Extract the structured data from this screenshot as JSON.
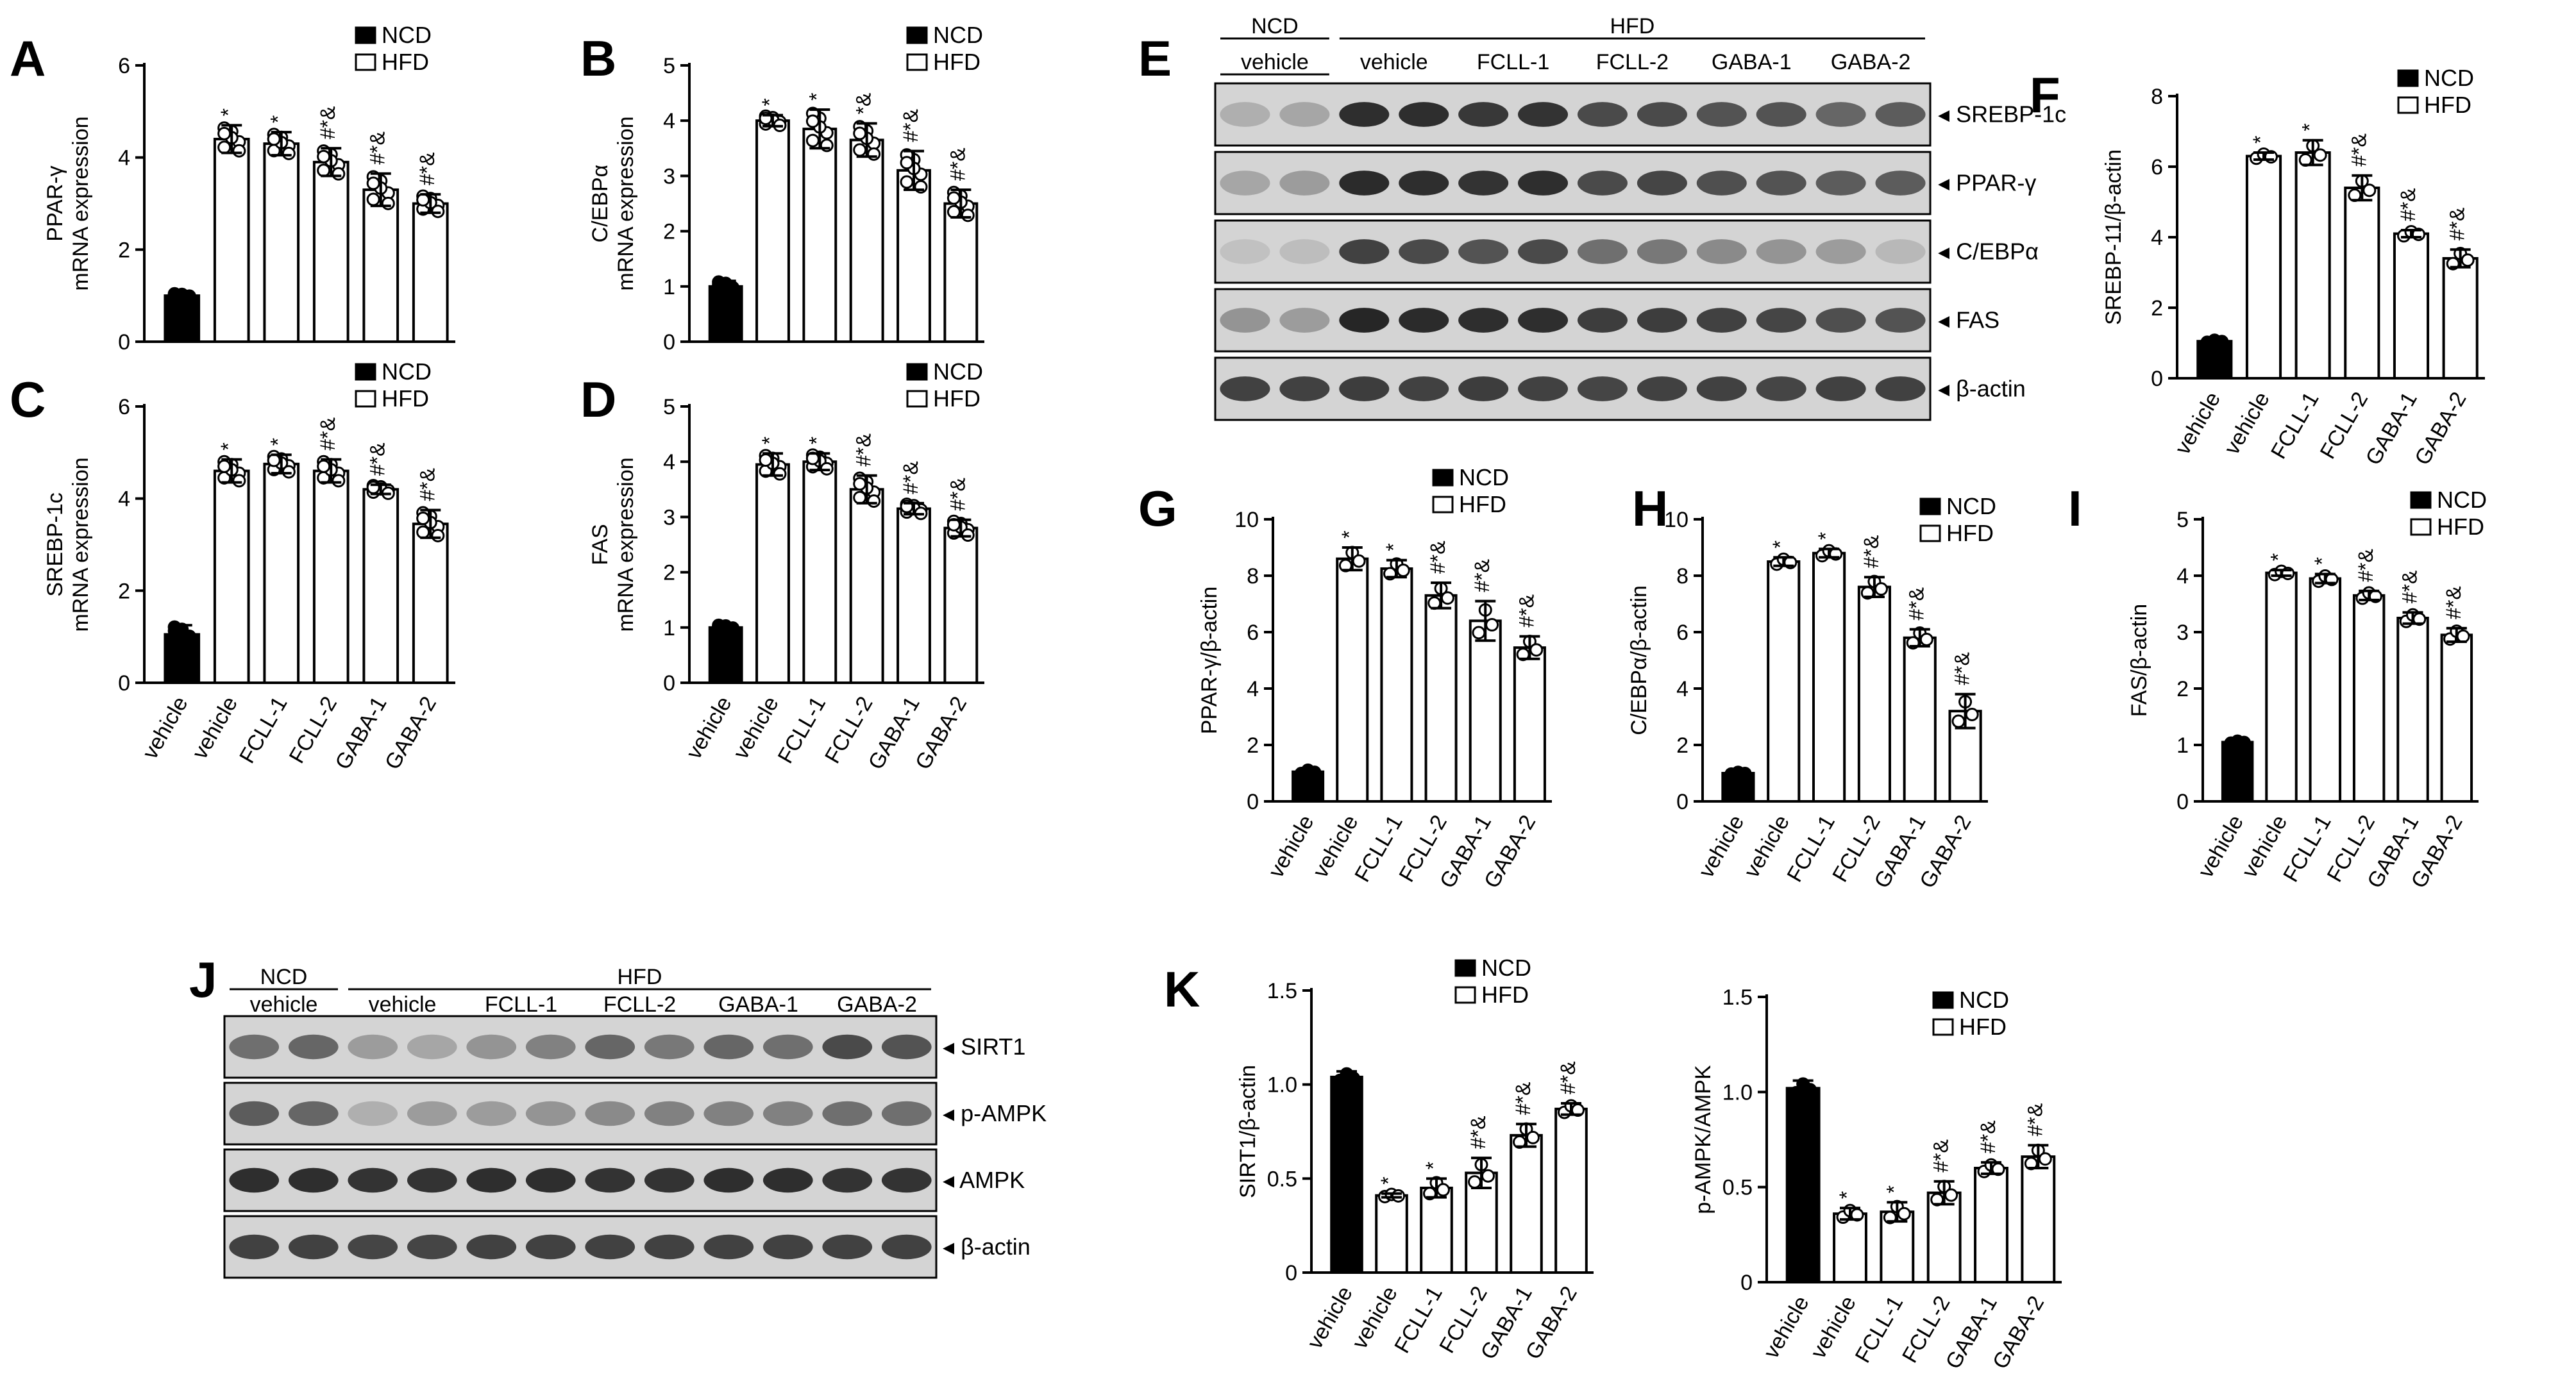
{
  "figure": {
    "legend_ncd": "NCD",
    "legend_hfd": "HFD",
    "colors": {
      "ncd_fill": "#000000",
      "hfd_fill": "#ffffff",
      "outline": "#000000",
      "blot_background": "#d4d4d4",
      "band": "#1c1c1c"
    },
    "group_categories": [
      "vehicle",
      "vehicle",
      "FCLL-1",
      "FCLL-2",
      "GABA-1",
      "GABA-2"
    ],
    "group_conditions": [
      "NCD",
      "HFD",
      "HFD",
      "HFD",
      "HFD",
      "HFD"
    ]
  },
  "chart_data": [
    {
      "panel": "A",
      "type": "bar",
      "ylabel": [
        "PPAR-γ",
        "mRNA expression"
      ],
      "ylim": [
        0,
        6
      ],
      "yticks": [
        0,
        2,
        4,
        6
      ],
      "categories": [
        "vehicle",
        "vehicle",
        "FCLL-1",
        "FCLL-2",
        "GABA-1",
        "GABA-2"
      ],
      "values": [
        1.0,
        4.4,
        4.3,
        3.9,
        3.3,
        3.0
      ],
      "errors": [
        0.05,
        0.3,
        0.25,
        0.3,
        0.35,
        0.2
      ],
      "significance": [
        "",
        "*",
        "*",
        "#*&",
        "#*&",
        "#*&"
      ],
      "show_xlabels": false
    },
    {
      "panel": "B",
      "type": "bar",
      "ylabel": [
        "C/EBPα",
        "mRNA expression"
      ],
      "ylim": [
        0,
        5
      ],
      "yticks": [
        0,
        1,
        2,
        3,
        4,
        5
      ],
      "categories": [
        "vehicle",
        "vehicle",
        "FCLL-1",
        "FCLL-2",
        "GABA-1",
        "GABA-2"
      ],
      "values": [
        1.0,
        4.0,
        3.85,
        3.65,
        3.1,
        2.5
      ],
      "errors": [
        0.1,
        0.1,
        0.35,
        0.3,
        0.35,
        0.25
      ],
      "significance": [
        "",
        "*",
        "*",
        "*&",
        "#*&",
        "#*&"
      ],
      "show_xlabels": false
    },
    {
      "panel": "C",
      "type": "bar",
      "ylabel": [
        "SREBP-1c",
        "mRNA expression"
      ],
      "ylim": [
        0,
        6
      ],
      "yticks": [
        0,
        2,
        4,
        6
      ],
      "categories": [
        "vehicle",
        "vehicle",
        "FCLL-1",
        "FCLL-2",
        "GABA-1",
        "GABA-2"
      ],
      "values": [
        1.05,
        4.6,
        4.75,
        4.6,
        4.2,
        3.45
      ],
      "errors": [
        0.2,
        0.25,
        0.2,
        0.25,
        0.1,
        0.3
      ],
      "significance": [
        "",
        "*",
        "*",
        "#*&",
        "#*&",
        "#*&"
      ],
      "show_xlabels": true
    },
    {
      "panel": "D",
      "type": "bar",
      "ylabel": [
        "FAS",
        "mRNA expression"
      ],
      "ylim": [
        0,
        5
      ],
      "yticks": [
        0,
        1,
        2,
        3,
        4,
        5
      ],
      "categories": [
        "vehicle",
        "vehicle",
        "FCLL-1",
        "FCLL-2",
        "GABA-1",
        "GABA-2"
      ],
      "values": [
        1.0,
        3.95,
        4.0,
        3.5,
        3.15,
        2.8
      ],
      "errors": [
        0.05,
        0.2,
        0.15,
        0.25,
        0.1,
        0.15
      ],
      "significance": [
        "",
        "*",
        "*",
        "#*&",
        "#*&",
        "#*&"
      ],
      "show_xlabels": true
    },
    {
      "panel": "F",
      "type": "bar",
      "ylabel": [
        "SREBP-11/β-actin"
      ],
      "ylim": [
        0,
        8
      ],
      "yticks": [
        0,
        2,
        4,
        6,
        8
      ],
      "categories": [
        "vehicle",
        "vehicle",
        "FCLL-1",
        "FCLL-2",
        "GABA-1",
        "GABA-2"
      ],
      "values": [
        1.05,
        6.3,
        6.4,
        5.4,
        4.1,
        3.4
      ],
      "errors": [
        0.05,
        0.1,
        0.35,
        0.35,
        0.1,
        0.25
      ],
      "significance": [
        "",
        "*",
        "*",
        "#*&",
        "#*&",
        "#*&"
      ],
      "show_xlabels": true
    },
    {
      "panel": "G",
      "type": "bar",
      "ylabel": [
        "PPAR-γ/β-actin"
      ],
      "ylim": [
        0,
        10
      ],
      "yticks": [
        0,
        2,
        4,
        6,
        8,
        10
      ],
      "categories": [
        "vehicle",
        "vehicle",
        "FCLL-1",
        "FCLL-2",
        "GABA-1",
        "GABA-2"
      ],
      "values": [
        1.05,
        8.6,
        8.25,
        7.3,
        6.4,
        5.45
      ],
      "errors": [
        0.1,
        0.4,
        0.3,
        0.45,
        0.7,
        0.4
      ],
      "significance": [
        "",
        "*",
        "*",
        "#*&",
        "#*&",
        "#*&"
      ],
      "show_xlabels": true
    },
    {
      "panel": "H",
      "type": "bar",
      "ylabel": [
        "C/EBPα/β-actin"
      ],
      "ylim": [
        0,
        10
      ],
      "yticks": [
        0,
        2,
        4,
        6,
        8,
        10
      ],
      "categories": [
        "vehicle",
        "vehicle",
        "FCLL-1",
        "FCLL-2",
        "GABA-1",
        "GABA-2"
      ],
      "values": [
        1.0,
        8.5,
        8.8,
        7.6,
        5.8,
        3.2
      ],
      "errors": [
        0.05,
        0.15,
        0.15,
        0.35,
        0.3,
        0.6
      ],
      "significance": [
        "",
        "*",
        "*",
        "#*&",
        "#*&",
        "#*&"
      ],
      "show_xlabels": true
    },
    {
      "panel": "I",
      "type": "bar",
      "ylabel": [
        "FAS/β-actin"
      ],
      "ylim": [
        0,
        5
      ],
      "yticks": [
        0,
        1,
        2,
        3,
        4,
        5
      ],
      "categories": [
        "vehicle",
        "vehicle",
        "FCLL-1",
        "FCLL-2",
        "GABA-1",
        "GABA-2"
      ],
      "values": [
        1.05,
        4.05,
        3.95,
        3.65,
        3.25,
        2.95
      ],
      "errors": [
        0.03,
        0.05,
        0.08,
        0.08,
        0.1,
        0.12
      ],
      "significance": [
        "",
        "*",
        "*",
        "#*&",
        "#*&",
        "#*&"
      ],
      "show_xlabels": true
    },
    {
      "panel": "K1",
      "type": "bar",
      "ylabel": [
        "SIRT1/β-actin"
      ],
      "ylim": [
        0,
        1.5
      ],
      "yticks": [
        0,
        0.5,
        1.0,
        1.5
      ],
      "categories": [
        "vehicle",
        "vehicle",
        "FCLL-1",
        "FCLL-2",
        "GABA-1",
        "GABA-2"
      ],
      "values": [
        1.04,
        0.41,
        0.45,
        0.53,
        0.73,
        0.87
      ],
      "errors": [
        0.03,
        0.01,
        0.05,
        0.08,
        0.06,
        0.03
      ],
      "significance": [
        "",
        "*",
        "*",
        "#*&",
        "#*&",
        "#*&"
      ],
      "show_xlabels": true
    },
    {
      "panel": "K2",
      "type": "bar",
      "ylabel": [
        "p-AMPK/AMPK"
      ],
      "ylim": [
        0,
        1.5
      ],
      "yticks": [
        0,
        0.5,
        1.0,
        1.5
      ],
      "categories": [
        "vehicle",
        "vehicle",
        "FCLL-1",
        "FCLL-2",
        "GABA-1",
        "GABA-2"
      ],
      "values": [
        1.02,
        0.36,
        0.37,
        0.47,
        0.6,
        0.66
      ],
      "errors": [
        0.04,
        0.03,
        0.05,
        0.06,
        0.03,
        0.06
      ],
      "significance": [
        "",
        "*",
        "*",
        "#*&",
        "#*&",
        "#*&"
      ],
      "show_xlabels": true
    }
  ],
  "panel_letters": {
    "A": "A",
    "B": "B",
    "C": "C",
    "D": "D",
    "E": "E",
    "F": "F",
    "G": "G",
    "H": "H",
    "I": "I",
    "J": "J",
    "K": "K"
  },
  "blots": [
    {
      "panel": "E",
      "ncd_header": "NCD",
      "hfd_header": "HFD",
      "lane_labels": [
        "vehicle",
        "vehicle",
        "FCLL-1",
        "FCLL-2",
        "GABA-1",
        "GABA-2"
      ],
      "rows": [
        {
          "label": "SREBP-1c",
          "bands": [
            0.2,
            0.25,
            0.9,
            0.9,
            0.85,
            0.88,
            0.75,
            0.75,
            0.7,
            0.7,
            0.6,
            0.65
          ]
        },
        {
          "label": "PPAR-γ",
          "bands": [
            0.25,
            0.3,
            0.92,
            0.9,
            0.88,
            0.9,
            0.75,
            0.78,
            0.72,
            0.7,
            0.65,
            0.65
          ]
        },
        {
          "label": "C/EBPα",
          "bands": [
            0.1,
            0.12,
            0.8,
            0.75,
            0.7,
            0.75,
            0.55,
            0.5,
            0.4,
            0.35,
            0.3,
            0.15
          ]
        },
        {
          "label": "FAS",
          "bands": [
            0.35,
            0.3,
            0.95,
            0.92,
            0.9,
            0.9,
            0.82,
            0.82,
            0.8,
            0.78,
            0.72,
            0.7
          ]
        },
        {
          "label": "β-actin",
          "bands": [
            0.8,
            0.8,
            0.82,
            0.8,
            0.82,
            0.8,
            0.78,
            0.8,
            0.8,
            0.78,
            0.8,
            0.8
          ]
        }
      ]
    },
    {
      "panel": "J",
      "ncd_header": "NCD",
      "hfd_header": "HFD",
      "lane_labels": [
        "vehicle",
        "vehicle",
        "FCLL-1",
        "FCLL-2",
        "GABA-1",
        "GABA-2"
      ],
      "rows": [
        {
          "label": "SIRT1",
          "bands": [
            0.55,
            0.6,
            0.3,
            0.25,
            0.35,
            0.45,
            0.6,
            0.5,
            0.6,
            0.55,
            0.75,
            0.7
          ]
        },
        {
          "label": "p-AMPK",
          "bands": [
            0.65,
            0.6,
            0.2,
            0.3,
            0.3,
            0.35,
            0.4,
            0.45,
            0.45,
            0.45,
            0.55,
            0.55
          ]
        },
        {
          "label": "AMPK",
          "bands": [
            0.9,
            0.9,
            0.88,
            0.88,
            0.9,
            0.9,
            0.88,
            0.88,
            0.9,
            0.9,
            0.88,
            0.88
          ]
        },
        {
          "label": "β-actin",
          "bands": [
            0.8,
            0.8,
            0.78,
            0.78,
            0.8,
            0.8,
            0.8,
            0.8,
            0.8,
            0.8,
            0.8,
            0.8
          ]
        }
      ]
    }
  ]
}
